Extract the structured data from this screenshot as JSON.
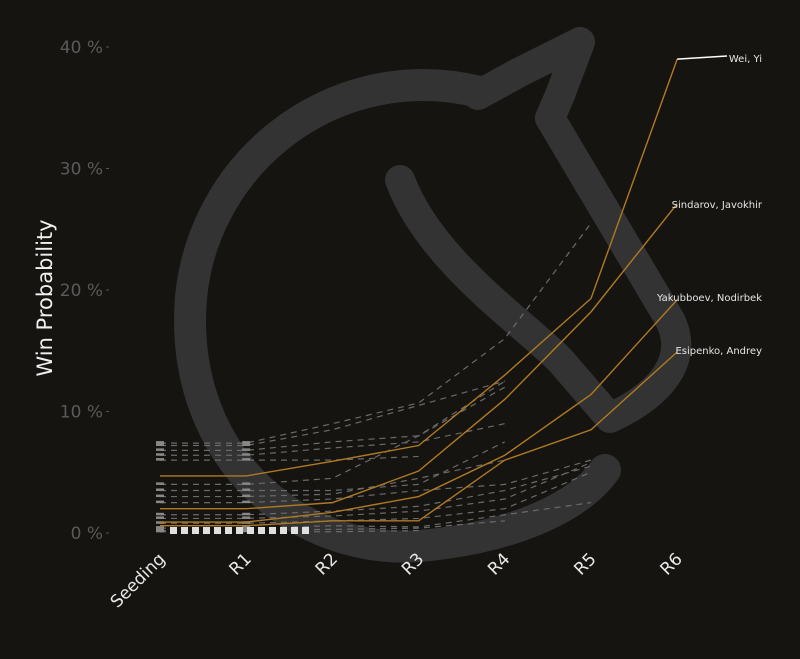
{
  "chart_data": {
    "type": "line",
    "title": "",
    "xlabel": "",
    "ylabel": "Win Probability",
    "categories": [
      "Seeding",
      "R1",
      "R2",
      "R3",
      "R4",
      "R5",
      "R6"
    ],
    "yticks": [
      "0 %",
      "10 %",
      "20 %",
      "30 %",
      "40 %"
    ],
    "ylim": [
      0,
      40
    ],
    "grid": false,
    "colors": {
      "background": "#161411",
      "highlight": "#b07a22",
      "other": "#6a6a6a",
      "watermark": "#333333"
    },
    "highlighted_series": [
      {
        "name": "Wei, Yi",
        "values": [
          4.7,
          4.7,
          5.9,
          7.2,
          13.0,
          19.3,
          39.0
        ]
      },
      {
        "name": "Sindarov, Javokhir",
        "values": [
          2.0,
          2.0,
          2.5,
          5.1,
          11.0,
          18.2,
          27.1
        ]
      },
      {
        "name": "Yakubboev, Nodirbek",
        "values": [
          0.9,
          0.9,
          1.7,
          3.0,
          6.4,
          11.4,
          19.2
        ]
      },
      {
        "name": "Esipenko, Andrey",
        "values": [
          0.6,
          0.6,
          1.0,
          1.0,
          6.0,
          8.5,
          14.9
        ]
      }
    ],
    "other_series": [
      [
        7.4,
        7.4,
        9.0,
        10.7,
        16.0,
        25.5
      ],
      [
        7.2,
        7.2,
        8.5,
        10.5,
        12.5
      ],
      [
        6.8,
        6.8,
        7.5,
        8.0,
        12.0
      ],
      [
        6.4,
        6.4,
        7.0,
        7.5,
        9.0
      ],
      [
        6.0,
        6.0,
        6.0,
        6.3
      ],
      [
        4.0,
        4.0,
        4.5,
        8.0,
        12.5
      ],
      [
        3.5,
        3.5,
        3.5,
        4.0,
        7.5
      ],
      [
        3.0,
        3.0,
        3.2,
        4.5,
        6.0
      ],
      [
        2.5,
        2.5,
        2.8,
        3.5,
        4.0,
        6.0
      ],
      [
        1.5,
        1.5,
        1.8,
        2.2,
        3.5,
        5.5
      ],
      [
        1.2,
        1.2,
        1.4,
        1.8,
        2.8,
        5.8
      ],
      [
        0.8,
        0.8,
        1.0,
        1.2,
        2.0,
        5.0
      ],
      [
        0.4,
        0.4,
        0.6,
        0.5,
        1.5,
        2.5
      ],
      [
        0.2,
        0.2,
        0.3,
        0.4,
        1.0
      ],
      [
        0.1,
        0.1,
        0.1,
        0.2
      ]
    ]
  }
}
